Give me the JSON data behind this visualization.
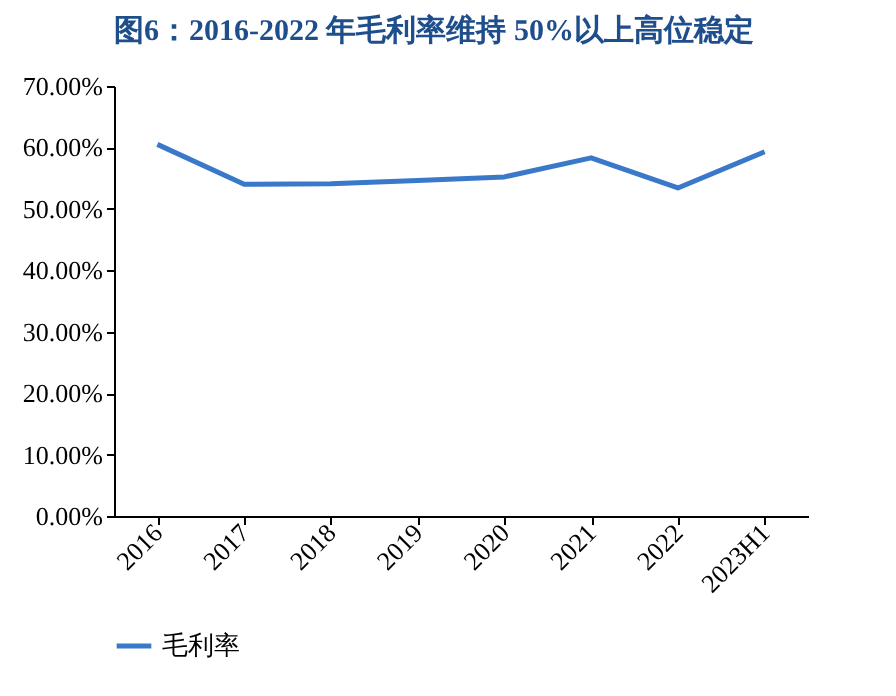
{
  "chart_data": {
    "type": "line",
    "title": "图6：2016-2022 年毛利率维持 50%以上高位稳定",
    "categories": [
      "2016",
      "2017",
      "2018",
      "2019",
      "2020",
      "2021",
      "2022",
      "2023H1"
    ],
    "series": [
      {
        "name": "毛利率",
        "color": "#3a78c9",
        "values": [
          60.5,
          54.0,
          54.1,
          54.6,
          55.2,
          58.3,
          53.4,
          59.3
        ]
      }
    ],
    "ylim": [
      0,
      70
    ],
    "yticks": [
      {
        "value": 0,
        "label": "0.00%"
      },
      {
        "value": 10,
        "label": "10.00%"
      },
      {
        "value": 20,
        "label": "20.00%"
      },
      {
        "value": 30,
        "label": "30.00%"
      },
      {
        "value": 40,
        "label": "40.00%"
      },
      {
        "value": 50,
        "label": "50.00%"
      },
      {
        "value": 60,
        "label": "60.00%"
      },
      {
        "value": 70,
        "label": "70.00%"
      }
    ],
    "grid": false,
    "legend": "bottom",
    "marker": "none",
    "line_style": "solid"
  }
}
